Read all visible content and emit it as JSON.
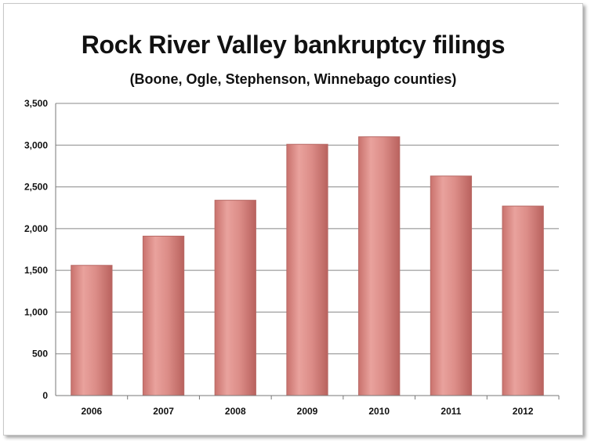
{
  "chart_data": {
    "type": "bar",
    "title": "Rock River Valley bankruptcy filings",
    "subtitle": "(Boone, Ogle, Stephenson, Winnebago counties)",
    "categories": [
      "2006",
      "2007",
      "2008",
      "2009",
      "2010",
      "2011",
      "2012"
    ],
    "values": [
      1560,
      1910,
      2340,
      3010,
      3100,
      2630,
      2270
    ],
    "ylim": [
      0,
      3500
    ],
    "yticks": [
      0,
      500,
      1000,
      1500,
      2000,
      2500,
      3000,
      3500
    ],
    "ytick_labels": [
      "0",
      "500",
      "1,000",
      "1,500",
      "2,000",
      "2,500",
      "3,000",
      "3,500"
    ],
    "xlabel": "",
    "ylabel": "",
    "grid": true,
    "legend": "none",
    "colors": {
      "bar": "#d98882",
      "bar_edge": "#b86a66",
      "grid": "#888888"
    }
  }
}
